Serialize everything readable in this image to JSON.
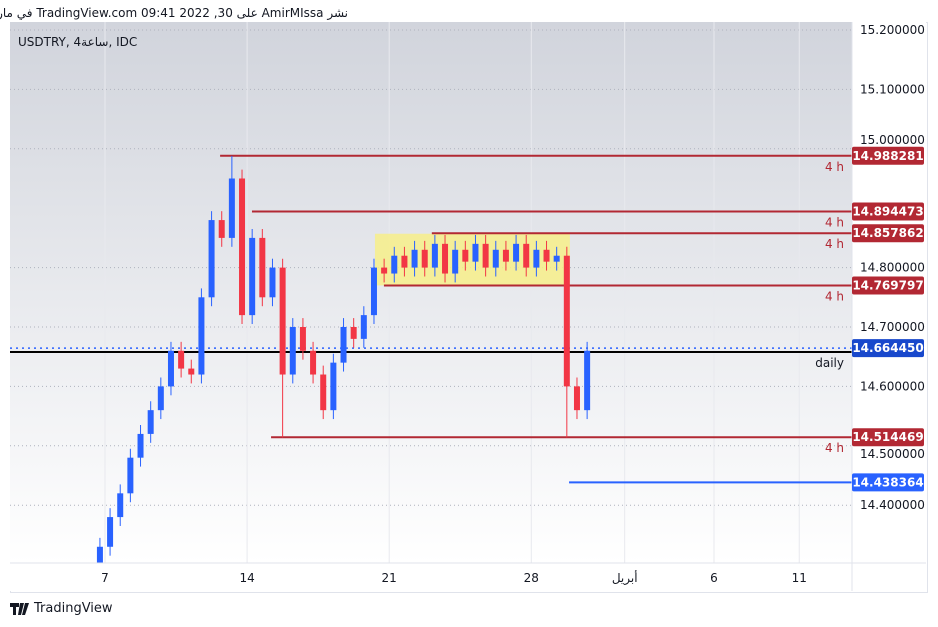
{
  "header": {
    "publish_text": "نشر AmirMIssa على TradingView.com 09:41 2022 ,30 في مارس UTC"
  },
  "footer": {
    "brand": "TradingView"
  },
  "colors": {
    "up": "#2962ff",
    "down": "#f23645",
    "level": "#b22833",
    "blue_label": "#1848cc",
    "blue_line": "#2962ff",
    "zone": "#f7ef8a"
  },
  "chart_data": {
    "type": "candlestick",
    "title": "USDTRY, 4ساعة, IDC",
    "y_ticks": [
      "15.200000",
      "15.100000",
      "15.000000",
      "14.800000",
      "14.700000",
      "14.600000",
      "14.500000",
      "14.400000"
    ],
    "y_tick_values": [
      15.2,
      15.1,
      15.0,
      14.8,
      14.7,
      14.6,
      14.5,
      14.4
    ],
    "ylim": [
      14.31,
      15.22
    ],
    "x_ticks": [
      {
        "label": "7",
        "day": 7
      },
      {
        "label": "14",
        "day": 14
      },
      {
        "label": "21",
        "day": 21
      },
      {
        "label": "28",
        "day": 28
      },
      {
        "label": "أبريل",
        "day": 32.6
      },
      {
        "label": "6",
        "day": 37
      },
      {
        "label": "11",
        "day": 41.2
      }
    ],
    "xlim": [
      2.3,
      43.8
    ],
    "candles_start_day": 6.75,
    "candles_step_day": 0.5,
    "closes": [
      14.33,
      14.38,
      14.42,
      14.48,
      14.52,
      14.56,
      14.6,
      14.66,
      14.63,
      14.62,
      14.75,
      14.88,
      14.85,
      14.95,
      14.72,
      14.85,
      14.75,
      14.8,
      14.62,
      14.7,
      14.66,
      14.62,
      14.56,
      14.64,
      14.7,
      14.68,
      14.72,
      14.8,
      14.79,
      14.82,
      14.8,
      14.83,
      14.8,
      14.84,
      14.79,
      14.83,
      14.81,
      14.84,
      14.8,
      14.83,
      14.81,
      14.84,
      14.8,
      14.83,
      14.81,
      14.82,
      14.6,
      14.56,
      14.66
    ],
    "first_open": 14.3,
    "extremes": [
      {
        "index": 13,
        "high": 14.988
      },
      {
        "index": 18,
        "low": 14.514
      },
      {
        "index": 46,
        "low": 14.514
      }
    ],
    "levels": [
      {
        "price": 14.988281,
        "label": "14.988281",
        "tag": "4 h",
        "from_day": 12.67,
        "kind": "red"
      },
      {
        "price": 14.894473,
        "label": "14.894473",
        "tag": "4 h",
        "from_day": 14.24,
        "kind": "red"
      },
      {
        "price": 14.857862,
        "label": "14.857862",
        "tag": "4 h",
        "from_day": 23.1,
        "kind": "red"
      },
      {
        "price": 14.769797,
        "label": "14.769797",
        "tag": "4 h",
        "from_day": 20.74,
        "kind": "red"
      },
      {
        "price": 14.514469,
        "label": "14.514469",
        "tag": "4 h",
        "from_day": 15.18,
        "kind": "red"
      },
      {
        "price": 14.438364,
        "label": "14.438364",
        "tag": "",
        "from_day": 29.86,
        "kind": "blue"
      },
      {
        "price": 14.658,
        "label": "",
        "tag": "daily",
        "from_day": 2.3,
        "kind": "black"
      }
    ],
    "last_price": {
      "price": 14.66445,
      "label": "14.664450"
    },
    "zone": {
      "from_day": 20.3,
      "to_day": 29.9,
      "top": 14.857,
      "bottom": 14.77
    }
  }
}
